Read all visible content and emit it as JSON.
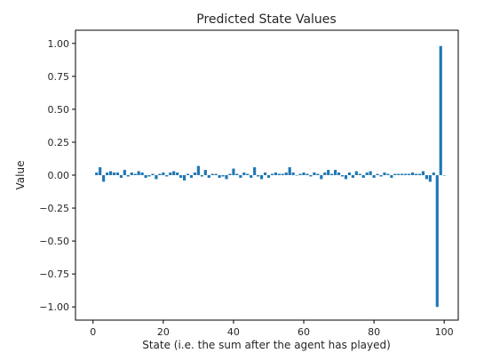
{
  "chart_data": {
    "type": "bar",
    "title": "Predicted State Values",
    "xlabel": "State (i.e. the sum after the agent has played)",
    "ylabel": "Value",
    "xlim": [
      -5,
      104
    ],
    "ylim": [
      -1.1,
      1.1
    ],
    "xticks": [
      0,
      20,
      40,
      60,
      80,
      100
    ],
    "yticks": [
      1.0,
      0.75,
      0.5,
      0.25,
      0.0,
      -0.25,
      -0.5,
      -0.75,
      -1.0
    ],
    "xtick_labels": [
      "0",
      "20",
      "40",
      "60",
      "80",
      "100"
    ],
    "ytick_labels": [
      "1.00",
      "0.75",
      "0.50",
      "0.25",
      "0.00",
      "−0.25",
      "−0.50",
      "−0.75",
      "−1.00"
    ],
    "grid": false,
    "color": "#1f77b4",
    "x": [
      1,
      2,
      3,
      4,
      5,
      6,
      7,
      8,
      9,
      10,
      11,
      12,
      13,
      14,
      15,
      16,
      17,
      18,
      19,
      20,
      21,
      22,
      23,
      24,
      25,
      26,
      27,
      28,
      29,
      30,
      31,
      32,
      33,
      34,
      35,
      36,
      37,
      38,
      39,
      40,
      41,
      42,
      43,
      44,
      45,
      46,
      47,
      48,
      49,
      50,
      51,
      52,
      53,
      54,
      55,
      56,
      57,
      58,
      59,
      60,
      61,
      62,
      63,
      64,
      65,
      66,
      67,
      68,
      69,
      70,
      71,
      72,
      73,
      74,
      75,
      76,
      77,
      78,
      79,
      80,
      81,
      82,
      83,
      84,
      85,
      86,
      87,
      88,
      89,
      90,
      91,
      92,
      93,
      94,
      95,
      96,
      97,
      98,
      99,
      100
    ],
    "values": [
      0.02,
      0.06,
      -0.05,
      0.02,
      0.03,
      0.02,
      0.02,
      -0.02,
      0.04,
      -0.01,
      0.02,
      0.01,
      0.03,
      0.02,
      -0.02,
      -0.01,
      0.01,
      -0.03,
      0.01,
      0.02,
      -0.01,
      0.02,
      0.03,
      0.02,
      -0.02,
      -0.04,
      0.01,
      -0.02,
      0.02,
      0.07,
      -0.01,
      0.04,
      -0.02,
      0.01,
      0.01,
      -0.02,
      -0.01,
      -0.03,
      0.01,
      0.05,
      0.01,
      -0.02,
      0.02,
      0.01,
      -0.02,
      0.06,
      -0.01,
      -0.03,
      0.02,
      -0.02,
      0.01,
      0.02,
      0.01,
      0.01,
      0.02,
      0.06,
      0.02,
      0.0,
      0.01,
      0.02,
      0.01,
      -0.01,
      0.02,
      0.01,
      -0.03,
      0.02,
      0.04,
      0.01,
      0.04,
      0.02,
      -0.01,
      -0.03,
      0.02,
      -0.02,
      0.03,
      0.01,
      -0.02,
      0.02,
      0.03,
      -0.02,
      0.01,
      -0.01,
      0.02,
      0.01,
      -0.02,
      0.01,
      0.01,
      0.01,
      0.01,
      0.01,
      0.02,
      0.01,
      0.01,
      0.03,
      -0.03,
      -0.05,
      0.02,
      -1.0,
      0.98,
      0.0
    ]
  }
}
